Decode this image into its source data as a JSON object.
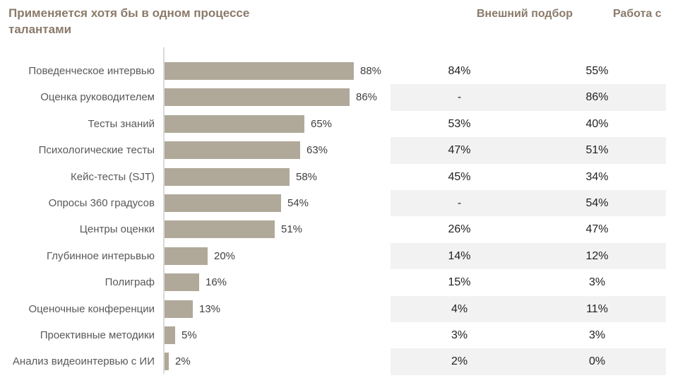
{
  "header": {
    "title": "Применяется хотя бы в одном процессе талантами",
    "col1_label": "Внешний подбор",
    "col2_label": "Работа с"
  },
  "colors": {
    "accent": "#8a7a6a",
    "bar": "#b0a899",
    "stripe": "#f2f2f2",
    "axis": "#d9d9d9",
    "category_text": "#595959",
    "bar_value_text": "#3f3f3f",
    "cell_text": "#1f1f1f"
  },
  "chart_data": {
    "type": "bar",
    "orientation": "horizontal",
    "title": "Применяется хотя бы в одном процессе талантами",
    "categories": [
      "Поведенческое интервью",
      "Оценка руководителем",
      "Тесты знаний",
      "Психологические тесты",
      "Кейс-тесты (SJT)",
      "Опросы 360 градусов",
      "Центры оценки",
      "Глубинное интерьвью",
      "Полиграф",
      "Оценочные конференции",
      "Проективные методики",
      "Анализ видеоинтервью с ИИ"
    ],
    "series": [
      {
        "name": "Применяется хотя бы в одном процессе талантами",
        "unit": "%",
        "values": [
          88,
          86,
          65,
          63,
          58,
          54,
          51,
          20,
          16,
          13,
          5,
          2
        ]
      },
      {
        "name": "Внешний подбор",
        "unit": "%",
        "values": [
          84,
          null,
          53,
          47,
          45,
          null,
          26,
          14,
          15,
          4,
          3,
          2
        ]
      },
      {
        "name": "Работа с",
        "unit": "%",
        "values": [
          55,
          86,
          40,
          51,
          34,
          54,
          47,
          12,
          3,
          11,
          3,
          0
        ]
      }
    ],
    "xlim": [
      0,
      100
    ],
    "value_labels": true,
    "grid": false,
    "legend_position": "top",
    "bar_color": "#b0a899"
  },
  "rows": [
    {
      "label": "Поведенческое интервью",
      "bar": 88,
      "bar_label": "88%",
      "col1": "84%",
      "col2": "55%",
      "striped": false
    },
    {
      "label": "Оценка руководителем",
      "bar": 86,
      "bar_label": "86%",
      "col1": "-",
      "col2": "86%",
      "striped": true
    },
    {
      "label": "Тесты знаний",
      "bar": 65,
      "bar_label": "65%",
      "col1": "53%",
      "col2": "40%",
      "striped": false
    },
    {
      "label": "Психологические тесты",
      "bar": 63,
      "bar_label": "63%",
      "col1": "47%",
      "col2": "51%",
      "striped": true
    },
    {
      "label": "Кейс-тесты (SJT)",
      "bar": 58,
      "bar_label": "58%",
      "col1": "45%",
      "col2": "34%",
      "striped": false
    },
    {
      "label": "Опросы 360 градусов",
      "bar": 54,
      "bar_label": "54%",
      "col1": "-",
      "col2": "54%",
      "striped": true
    },
    {
      "label": "Центры оценки",
      "bar": 51,
      "bar_label": "51%",
      "col1": "26%",
      "col2": "47%",
      "striped": false
    },
    {
      "label": "Глубинное интерьвью",
      "bar": 20,
      "bar_label": "20%",
      "col1": "14%",
      "col2": "12%",
      "striped": true
    },
    {
      "label": "Полиграф",
      "bar": 16,
      "bar_label": "16%",
      "col1": "15%",
      "col2": "3%",
      "striped": false
    },
    {
      "label": "Оценочные конференции",
      "bar": 13,
      "bar_label": "13%",
      "col1": "4%",
      "col2": "11%",
      "striped": true
    },
    {
      "label": "Проективные методики",
      "bar": 5,
      "bar_label": "5%",
      "col1": "3%",
      "col2": "3%",
      "striped": false
    },
    {
      "label": "Анализ видеоинтервью с ИИ",
      "bar": 2,
      "bar_label": "2%",
      "col1": "2%",
      "col2": "0%",
      "striped": true
    }
  ]
}
